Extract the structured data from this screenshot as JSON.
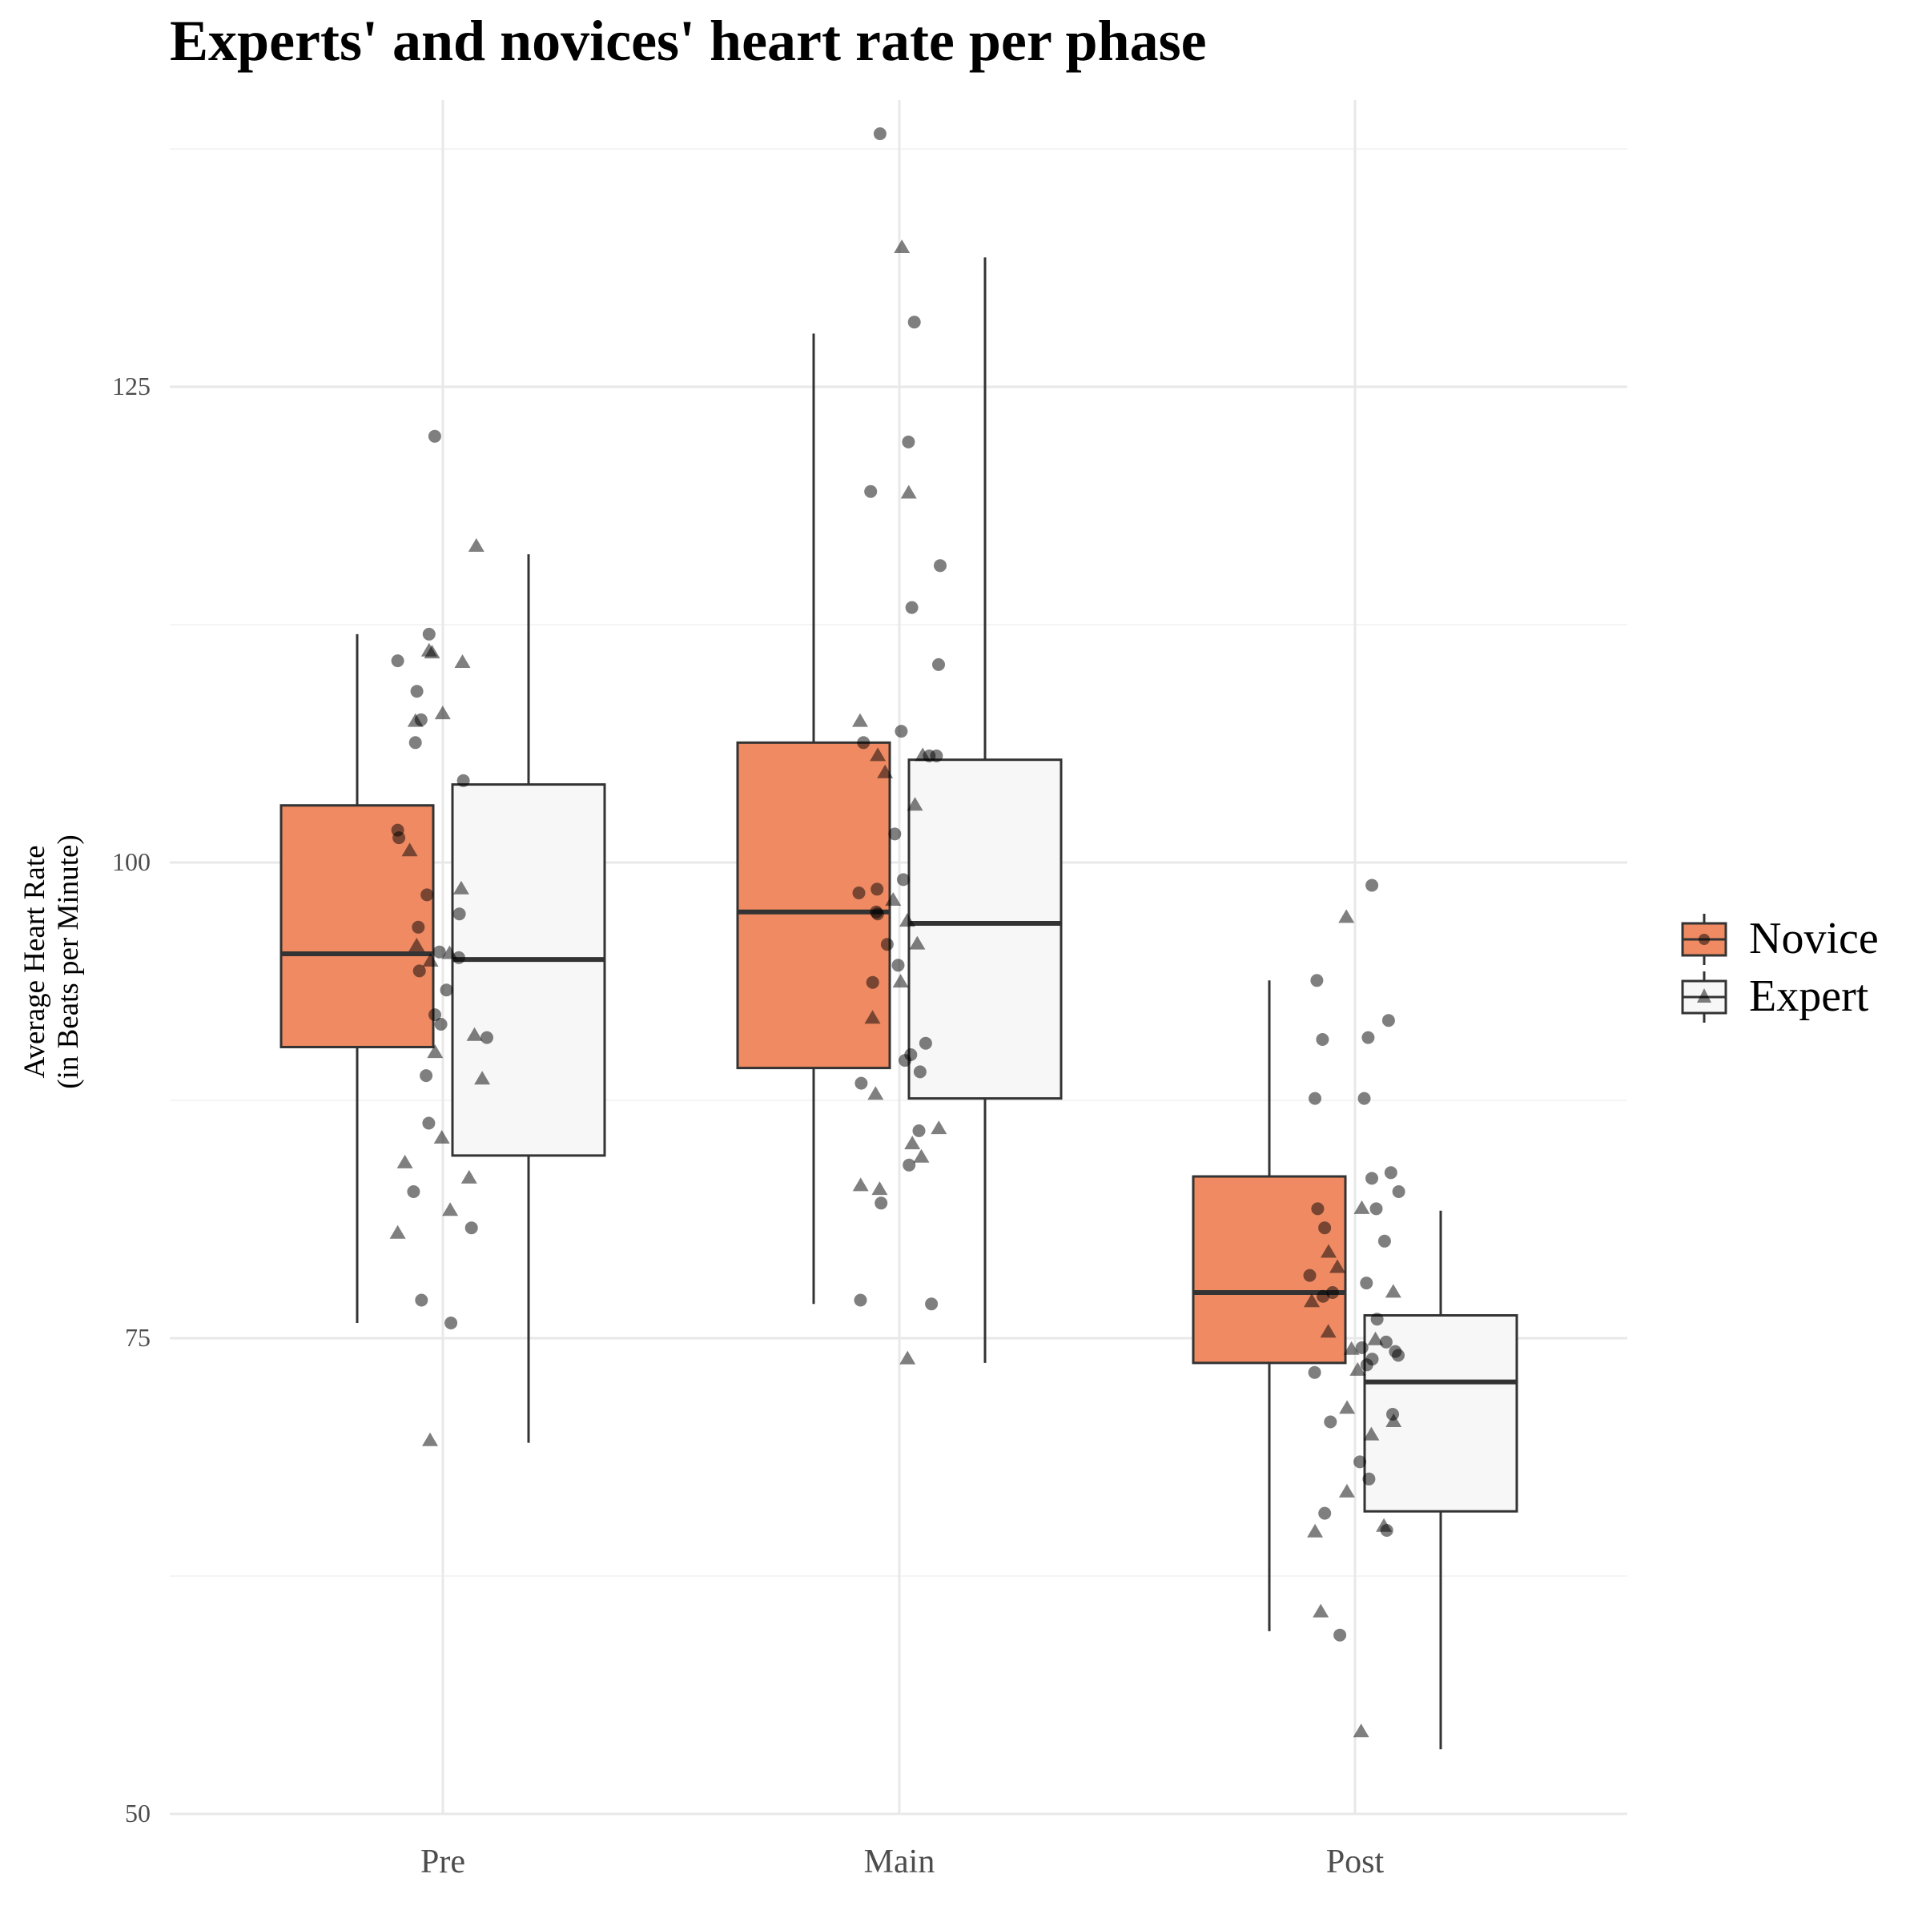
{
  "chart_data": {
    "type": "boxplot",
    "title": "Experts' and novices' heart rate per phase",
    "xlabel": "",
    "ylabel_lines": [
      "Average Heart Rate",
      "(in Beats per Minute)"
    ],
    "categories": [
      "Pre",
      "Main",
      "Post"
    ],
    "y_ticks": [
      50,
      75,
      100,
      125
    ],
    "ylim": [
      49.5,
      137.5
    ],
    "grid": true,
    "legend_position": "right",
    "series": [
      {
        "name": "Novice",
        "color": "#EF8A62",
        "marker": "circle",
        "boxes": [
          {
            "category": "Pre",
            "min": 75.8,
            "q1": 90.3,
            "median": 95.2,
            "q3": 103.0,
            "max": 112.0
          },
          {
            "category": "Main",
            "min": 76.8,
            "q1": 89.2,
            "median": 97.4,
            "q3": 106.3,
            "max": 127.8
          },
          {
            "category": "Post",
            "min": 59.6,
            "q1": 73.7,
            "median": 77.4,
            "q3": 83.5,
            "max": 93.8
          }
        ],
        "points": [
          {
            "category": "Pre",
            "values": [
              122.4,
              110.6,
              112.0,
              109.0,
              107.5,
              106.3,
              104.3,
              101.7,
              101.3,
              98.3,
              97.3,
              96.6,
              95.3,
              95.0,
              94.3,
              93.3,
              92.0,
              91.5,
              90.8,
              88.8,
              86.3,
              82.7,
              80.8,
              77.0,
              75.8
            ]
          },
          {
            "category": "Main",
            "values": [
              138.3,
              128.4,
              122.1,
              119.5,
              115.6,
              113.4,
              110.4,
              106.9,
              106.3,
              105.6,
              105.6,
              101.5,
              99.1,
              98.6,
              98.4,
              97.3,
              97.4,
              95.7,
              94.6,
              93.7,
              90.5,
              89.9,
              89.6,
              89.0,
              88.4,
              85.9,
              84.1,
              82.1,
              77.0,
              76.8
            ]
          },
          {
            "category": "Post",
            "values": [
              98.8,
              93.8,
              91.7,
              90.8,
              90.7,
              87.6,
              87.6,
              83.4,
              83.7,
              82.7,
              81.8,
              81.8,
              80.8,
              80.1,
              78.3,
              77.9,
              77.4,
              77.2,
              76.0,
              74.8,
              74.5,
              74.3,
              74.1,
              73.9,
              73.6,
              73.2,
              71.0,
              70.6,
              68.5,
              67.6,
              65.8,
              64.9,
              59.4
            ]
          }
        ]
      },
      {
        "name": "Expert",
        "color": "#F7F7F7",
        "marker": "triangle",
        "boxes": [
          {
            "category": "Pre",
            "min": 69.5,
            "q1": 84.6,
            "median": 94.9,
            "q3": 104.1,
            "max": 116.2
          },
          {
            "category": "Main",
            "min": 73.7,
            "q1": 87.6,
            "median": 96.8,
            "q3": 105.4,
            "max": 131.8
          },
          {
            "category": "Post",
            "min": 53.4,
            "q1": 65.9,
            "median": 72.7,
            "q3": 76.2,
            "max": 81.7
          }
        ],
        "points": [
          {
            "category": "Pre",
            "values": [
              116.6,
              111.1,
              111.0,
              110.5,
              107.8,
              107.4,
              100.6,
              98.6,
              95.6,
              95.2,
              94.8,
              90.9,
              90.0,
              88.6,
              85.5,
              84.2,
              83.4,
              81.7,
              80.5,
              69.6
            ]
          },
          {
            "category": "Main",
            "values": [
              132.3,
              119.4,
              107.4,
              105.6,
              105.6,
              104.7,
              103.0,
              98.0,
              96.9,
              95.7,
              93.7,
              91.8,
              87.8,
              86.0,
              85.2,
              84.5,
              83.0,
              82.8,
              73.9
            ]
          },
          {
            "category": "Post",
            "values": [
              97.1,
              81.8,
              79.5,
              78.7,
              77.4,
              76.9,
              75.3,
              74.9,
              74.4,
              73.3,
              71.3,
              70.6,
              69.9,
              66.9,
              65.1,
              64.8,
              60.6,
              54.3
            ]
          }
        ]
      }
    ]
  }
}
